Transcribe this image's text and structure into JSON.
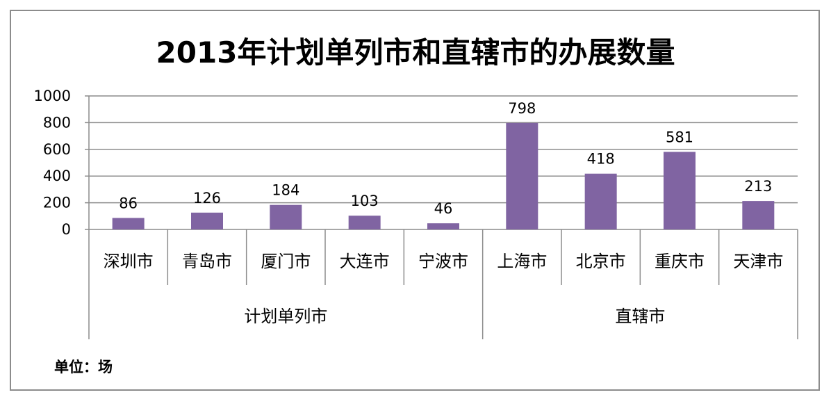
{
  "chart_data": {
    "type": "bar",
    "title": "2013年计划单列市和直辖市的办展数量",
    "unit_note": "单位：场",
    "categories": [
      "深圳市",
      "青岛市",
      "厦门市",
      "大连市",
      "宁波市",
      "上海市",
      "北京市",
      "重庆市",
      "天津市"
    ],
    "groups": [
      {
        "label": "计划单列市",
        "count": 5
      },
      {
        "label": "直辖市",
        "count": 4
      }
    ],
    "values": [
      86,
      126,
      184,
      103,
      46,
      798,
      418,
      581,
      213
    ],
    "ylim": [
      0,
      1000
    ],
    "yticks": [
      0,
      200,
      400,
      600,
      800,
      1000
    ],
    "grid": true,
    "legend": "none",
    "bar_color": "#8064a2"
  }
}
